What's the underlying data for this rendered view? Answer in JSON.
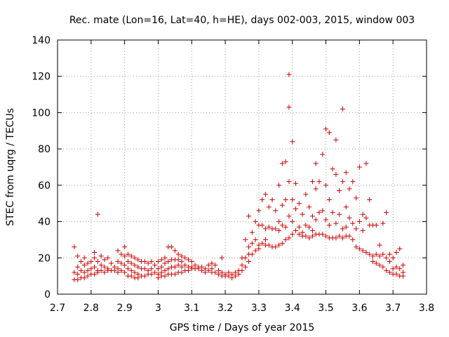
{
  "chart_data": {
    "type": "scatter",
    "title": "Rec. mate (Lon=16, Lat=40, h=HE), days 002-003, 2015, window 003",
    "xlabel": "GPS time / Days of year 2015",
    "ylabel": "STEC from uqrg / TECUs",
    "xlim": [
      2.7,
      3.8
    ],
    "ylim": [
      0,
      140
    ],
    "xticks": [
      2.7,
      2.8,
      2.9,
      3.0,
      3.1,
      3.2,
      3.3,
      3.4,
      3.5,
      3.6,
      3.7,
      3.8
    ],
    "xtick_labels": [
      "2.7",
      "2.8",
      "2.9",
      "3",
      "3.1",
      "3.2",
      "3.3",
      "3.4",
      "3.5",
      "3.6",
      "3.7",
      "3.8"
    ],
    "yticks": [
      0,
      20,
      40,
      60,
      80,
      100,
      120,
      140
    ],
    "ytick_labels": [
      "0",
      "20",
      "40",
      "60",
      "80",
      "100",
      "120",
      "140"
    ],
    "grid": true,
    "marker": "+",
    "color": "#cc0000",
    "points": [
      [
        2.75,
        26
      ],
      [
        2.75,
        12
      ],
      [
        2.75,
        8
      ],
      [
        2.76,
        21
      ],
      [
        2.76,
        15
      ],
      [
        2.76,
        11
      ],
      [
        2.76,
        8
      ],
      [
        2.77,
        18
      ],
      [
        2.77,
        13
      ],
      [
        2.77,
        9
      ],
      [
        2.78,
        20
      ],
      [
        2.78,
        16
      ],
      [
        2.78,
        12
      ],
      [
        2.78,
        9
      ],
      [
        2.79,
        17
      ],
      [
        2.79,
        13
      ],
      [
        2.79,
        10
      ],
      [
        2.8,
        18
      ],
      [
        2.8,
        14
      ],
      [
        2.8,
        11
      ],
      [
        2.81,
        23
      ],
      [
        2.81,
        20
      ],
      [
        2.81,
        15
      ],
      [
        2.81,
        11
      ],
      [
        2.82,
        44
      ],
      [
        2.82,
        18
      ],
      [
        2.82,
        13
      ],
      [
        2.82,
        12
      ],
      [
        2.83,
        21
      ],
      [
        2.83,
        16
      ],
      [
        2.83,
        13
      ],
      [
        2.84,
        19
      ],
      [
        2.84,
        15
      ],
      [
        2.84,
        12
      ],
      [
        2.85,
        20
      ],
      [
        2.85,
        14
      ],
      [
        2.85,
        13
      ],
      [
        2.86,
        17
      ],
      [
        2.86,
        13
      ],
      [
        2.87,
        15
      ],
      [
        2.87,
        13
      ],
      [
        2.88,
        24
      ],
      [
        2.88,
        18
      ],
      [
        2.88,
        14
      ],
      [
        2.88,
        12
      ],
      [
        2.89,
        22
      ],
      [
        2.89,
        17
      ],
      [
        2.89,
        13
      ],
      [
        2.9,
        26
      ],
      [
        2.9,
        21
      ],
      [
        2.9,
        16
      ],
      [
        2.9,
        12
      ],
      [
        2.91,
        22
      ],
      [
        2.91,
        18
      ],
      [
        2.91,
        14
      ],
      [
        2.91,
        10
      ],
      [
        2.92,
        21
      ],
      [
        2.92,
        17
      ],
      [
        2.92,
        13
      ],
      [
        2.92,
        10
      ],
      [
        2.93,
        20
      ],
      [
        2.93,
        16
      ],
      [
        2.93,
        12
      ],
      [
        2.93,
        9
      ],
      [
        2.94,
        19
      ],
      [
        2.94,
        15
      ],
      [
        2.94,
        11
      ],
      [
        2.94,
        9
      ],
      [
        2.95,
        18
      ],
      [
        2.95,
        14
      ],
      [
        2.95,
        10
      ],
      [
        2.96,
        18
      ],
      [
        2.96,
        14
      ],
      [
        2.96,
        10
      ],
      [
        2.97,
        17
      ],
      [
        2.97,
        13
      ],
      [
        2.97,
        11
      ],
      [
        2.98,
        18
      ],
      [
        2.98,
        14
      ],
      [
        2.98,
        11
      ],
      [
        2.99,
        16
      ],
      [
        2.99,
        12
      ],
      [
        3.0,
        18
      ],
      [
        3.0,
        14
      ],
      [
        3.0,
        11
      ],
      [
        3.0,
        9
      ],
      [
        3.01,
        19
      ],
      [
        3.01,
        15
      ],
      [
        3.01,
        12
      ],
      [
        3.01,
        10
      ],
      [
        3.02,
        20
      ],
      [
        3.02,
        17
      ],
      [
        3.02,
        13
      ],
      [
        3.02,
        10
      ],
      [
        3.03,
        26
      ],
      [
        3.03,
        18
      ],
      [
        3.03,
        14
      ],
      [
        3.03,
        11
      ],
      [
        3.04,
        26
      ],
      [
        3.04,
        19
      ],
      [
        3.04,
        15
      ],
      [
        3.04,
        11
      ],
      [
        3.05,
        24
      ],
      [
        3.05,
        19
      ],
      [
        3.05,
        15
      ],
      [
        3.05,
        11
      ],
      [
        3.06,
        22
      ],
      [
        3.06,
        19
      ],
      [
        3.06,
        16
      ],
      [
        3.06,
        12
      ],
      [
        3.07,
        21
      ],
      [
        3.07,
        18
      ],
      [
        3.07,
        15
      ],
      [
        3.07,
        12
      ],
      [
        3.08,
        20
      ],
      [
        3.08,
        16
      ],
      [
        3.08,
        13
      ],
      [
        3.09,
        19
      ],
      [
        3.09,
        15
      ],
      [
        3.09,
        13
      ],
      [
        3.1,
        18
      ],
      [
        3.1,
        15
      ],
      [
        3.1,
        14
      ],
      [
        3.11,
        16
      ],
      [
        3.11,
        14
      ],
      [
        3.12,
        15
      ],
      [
        3.12,
        14
      ],
      [
        3.13,
        15
      ],
      [
        3.13,
        13
      ],
      [
        3.14,
        14
      ],
      [
        3.14,
        12
      ],
      [
        3.15,
        16
      ],
      [
        3.15,
        13
      ],
      [
        3.16,
        17
      ],
      [
        3.16,
        14
      ],
      [
        3.16,
        12
      ],
      [
        3.17,
        16
      ],
      [
        3.17,
        12
      ],
      [
        3.18,
        13
      ],
      [
        3.18,
        11
      ],
      [
        3.19,
        20
      ],
      [
        3.19,
        12
      ],
      [
        3.19,
        10
      ],
      [
        3.2,
        11
      ],
      [
        3.2,
        10
      ],
      [
        3.21,
        12
      ],
      [
        3.21,
        10
      ],
      [
        3.22,
        11
      ],
      [
        3.22,
        9
      ],
      [
        3.23,
        12
      ],
      [
        3.23,
        10
      ],
      [
        3.24,
        13
      ],
      [
        3.24,
        11
      ],
      [
        3.25,
        20
      ],
      [
        3.25,
        16
      ],
      [
        3.25,
        13
      ],
      [
        3.26,
        30
      ],
      [
        3.26,
        20
      ],
      [
        3.26,
        15
      ],
      [
        3.27,
        43
      ],
      [
        3.27,
        26
      ],
      [
        3.27,
        22
      ],
      [
        3.27,
        18
      ],
      [
        3.28,
        34
      ],
      [
        3.28,
        28
      ],
      [
        3.28,
        22
      ],
      [
        3.29,
        40
      ],
      [
        3.29,
        30
      ],
      [
        3.29,
        24
      ],
      [
        3.3,
        46
      ],
      [
        3.3,
        38
      ],
      [
        3.3,
        27
      ],
      [
        3.3,
        25
      ],
      [
        3.31,
        52
      ],
      [
        3.31,
        38
      ],
      [
        3.31,
        28
      ],
      [
        3.32,
        55
      ],
      [
        3.32,
        36
      ],
      [
        3.32,
        30
      ],
      [
        3.32,
        27
      ],
      [
        3.33,
        48
      ],
      [
        3.33,
        37
      ],
      [
        3.33,
        27
      ],
      [
        3.34,
        52
      ],
      [
        3.34,
        36
      ],
      [
        3.34,
        26
      ],
      [
        3.35,
        46
      ],
      [
        3.35,
        36
      ],
      [
        3.35,
        26
      ],
      [
        3.36,
        60
      ],
      [
        3.36,
        40
      ],
      [
        3.36,
        35
      ],
      [
        3.36,
        27
      ],
      [
        3.37,
        72
      ],
      [
        3.37,
        49
      ],
      [
        3.37,
        38
      ],
      [
        3.37,
        28
      ],
      [
        3.38,
        73
      ],
      [
        3.38,
        52
      ],
      [
        3.38,
        37
      ],
      [
        3.38,
        30
      ],
      [
        3.39,
        121
      ],
      [
        3.39,
        103
      ],
      [
        3.39,
        62
      ],
      [
        3.39,
        43
      ],
      [
        3.39,
        31
      ],
      [
        3.4,
        84
      ],
      [
        3.4,
        52
      ],
      [
        3.4,
        40
      ],
      [
        3.4,
        33
      ],
      [
        3.41,
        61
      ],
      [
        3.41,
        47
      ],
      [
        3.41,
        35
      ],
      [
        3.42,
        50
      ],
      [
        3.42,
        37
      ],
      [
        3.42,
        33
      ],
      [
        3.43,
        44
      ],
      [
        3.43,
        34
      ],
      [
        3.43,
        32
      ],
      [
        3.44,
        55
      ],
      [
        3.44,
        38
      ],
      [
        3.44,
        32
      ],
      [
        3.45,
        48
      ],
      [
        3.45,
        37
      ],
      [
        3.45,
        31
      ],
      [
        3.46,
        62
      ],
      [
        3.46,
        43
      ],
      [
        3.46,
        35
      ],
      [
        3.46,
        32
      ],
      [
        3.47,
        72
      ],
      [
        3.47,
        58
      ],
      [
        3.47,
        41
      ],
      [
        3.47,
        33
      ],
      [
        3.48,
        62
      ],
      [
        3.48,
        45
      ],
      [
        3.48,
        33
      ],
      [
        3.49,
        77
      ],
      [
        3.49,
        46
      ],
      [
        3.49,
        33
      ],
      [
        3.5,
        91
      ],
      [
        3.5,
        60
      ],
      [
        3.5,
        41
      ],
      [
        3.5,
        32
      ],
      [
        3.51,
        89
      ],
      [
        3.51,
        52
      ],
      [
        3.51,
        38
      ],
      [
        3.51,
        31
      ],
      [
        3.52,
        69
      ],
      [
        3.52,
        45
      ],
      [
        3.52,
        31
      ],
      [
        3.53,
        85
      ],
      [
        3.53,
        66
      ],
      [
        3.53,
        39
      ],
      [
        3.53,
        31
      ],
      [
        3.54,
        57
      ],
      [
        3.54,
        44
      ],
      [
        3.54,
        32
      ],
      [
        3.55,
        102
      ],
      [
        3.55,
        62
      ],
      [
        3.55,
        36
      ],
      [
        3.55,
        31
      ],
      [
        3.56,
        67
      ],
      [
        3.56,
        48
      ],
      [
        3.56,
        37
      ],
      [
        3.56,
        32
      ],
      [
        3.57,
        58
      ],
      [
        3.57,
        42
      ],
      [
        3.57,
        32
      ],
      [
        3.58,
        62
      ],
      [
        3.58,
        39
      ],
      [
        3.58,
        30
      ],
      [
        3.59,
        53
      ],
      [
        3.59,
        36
      ],
      [
        3.59,
        26
      ],
      [
        3.6,
        70
      ],
      [
        3.6,
        40
      ],
      [
        3.6,
        25
      ],
      [
        3.61,
        44
      ],
      [
        3.61,
        35
      ],
      [
        3.61,
        24
      ],
      [
        3.62,
        72
      ],
      [
        3.62,
        42
      ],
      [
        3.62,
        23
      ],
      [
        3.63,
        52
      ],
      [
        3.63,
        38
      ],
      [
        3.63,
        22
      ],
      [
        3.64,
        38
      ],
      [
        3.64,
        21
      ],
      [
        3.64,
        18
      ],
      [
        3.65,
        38
      ],
      [
        3.65,
        22
      ],
      [
        3.65,
        17
      ],
      [
        3.66,
        27
      ],
      [
        3.66,
        21
      ],
      [
        3.66,
        16
      ],
      [
        3.67,
        39
      ],
      [
        3.67,
        22
      ],
      [
        3.67,
        15
      ],
      [
        3.68,
        45
      ],
      [
        3.68,
        20
      ],
      [
        3.68,
        13
      ],
      [
        3.69,
        22
      ],
      [
        3.69,
        18
      ],
      [
        3.69,
        12
      ],
      [
        3.7,
        20
      ],
      [
        3.7,
        14
      ],
      [
        3.7,
        11
      ],
      [
        3.71,
        23
      ],
      [
        3.71,
        15
      ],
      [
        3.71,
        11
      ],
      [
        3.72,
        25
      ],
      [
        3.72,
        14
      ],
      [
        3.72,
        10
      ],
      [
        3.73,
        16
      ],
      [
        3.73,
        12
      ],
      [
        3.73,
        10
      ]
    ]
  }
}
